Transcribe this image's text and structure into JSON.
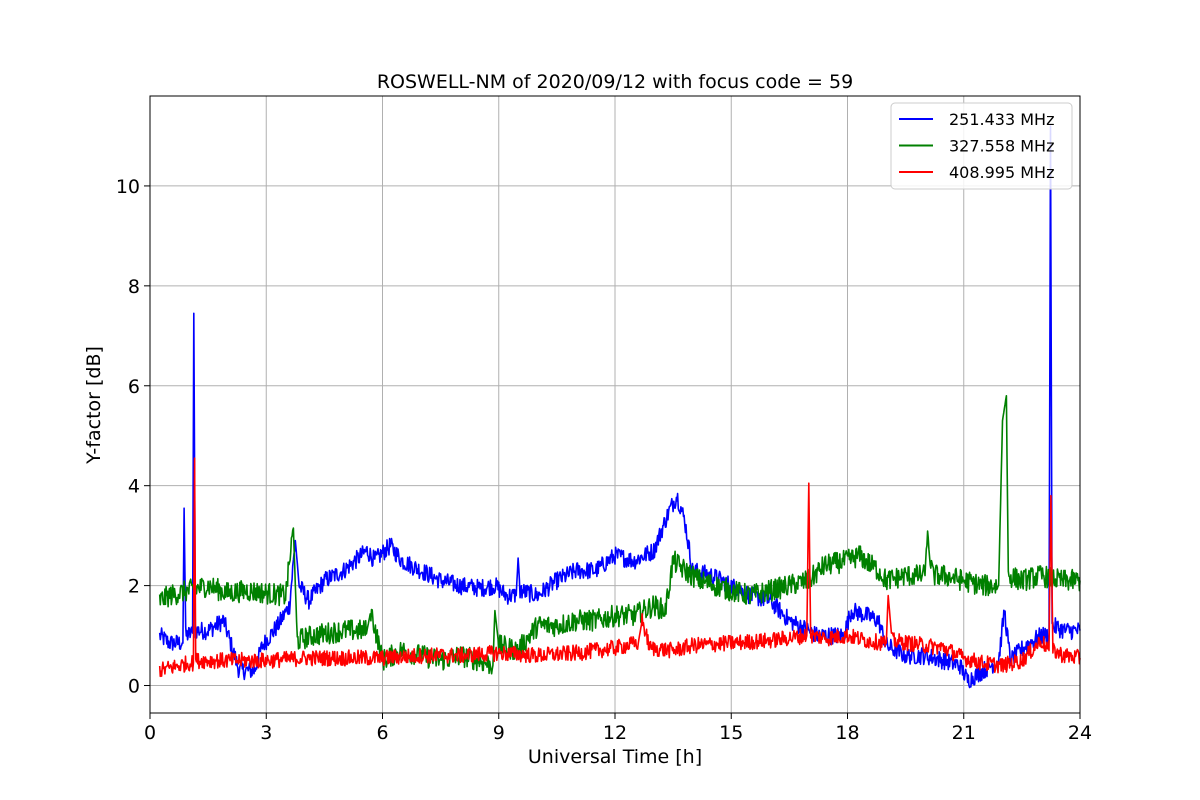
{
  "chart_data": {
    "type": "line",
    "title": "ROSWELL-NM of 2020/09/12 with focus code = 59",
    "xlabel": "Universal Time [h]",
    "ylabel": "Y-factor [dB]",
    "xlim": [
      0,
      24
    ],
    "ylim": [
      -0.55,
      11.8
    ],
    "xticks": [
      0,
      3,
      6,
      9,
      12,
      15,
      18,
      21,
      24
    ],
    "yticks": [
      0,
      2,
      4,
      6,
      8,
      10
    ],
    "grid": true,
    "legend_position": "top-right",
    "series": [
      {
        "name": "251.433 MHz",
        "color": "#0000ff",
        "noise": 0.18,
        "points": [
          [
            0.25,
            1.0
          ],
          [
            0.5,
            0.85
          ],
          [
            0.85,
            0.85
          ],
          [
            0.88,
            3.55
          ],
          [
            0.92,
            1.0
          ],
          [
            1.1,
            1.05
          ],
          [
            1.13,
            7.45
          ],
          [
            1.17,
            1.1
          ],
          [
            1.5,
            1.1
          ],
          [
            1.9,
            1.3
          ],
          [
            2.1,
            0.8
          ],
          [
            2.3,
            0.3
          ],
          [
            2.7,
            0.3
          ],
          [
            2.9,
            0.8
          ],
          [
            3.3,
            1.2
          ],
          [
            3.6,
            1.6
          ],
          [
            3.75,
            2.9
          ],
          [
            3.85,
            2.0
          ],
          [
            4.1,
            1.7
          ],
          [
            4.5,
            2.1
          ],
          [
            5.0,
            2.3
          ],
          [
            5.6,
            2.7
          ],
          [
            5.8,
            2.5
          ],
          [
            6.2,
            2.8
          ],
          [
            6.5,
            2.5
          ],
          [
            7.0,
            2.3
          ],
          [
            7.5,
            2.1
          ],
          [
            8.0,
            2.0
          ],
          [
            8.5,
            1.95
          ],
          [
            8.9,
            2.0
          ],
          [
            9.2,
            1.8
          ],
          [
            9.45,
            1.8
          ],
          [
            9.5,
            2.55
          ],
          [
            9.55,
            1.9
          ],
          [
            10.0,
            1.8
          ],
          [
            10.5,
            2.1
          ],
          [
            11.0,
            2.3
          ],
          [
            11.5,
            2.3
          ],
          [
            12.0,
            2.6
          ],
          [
            12.5,
            2.5
          ],
          [
            13.0,
            2.7
          ],
          [
            13.4,
            3.5
          ],
          [
            13.6,
            3.8
          ],
          [
            13.8,
            3.3
          ],
          [
            14.0,
            2.3
          ],
          [
            14.5,
            2.2
          ],
          [
            15.0,
            2.0
          ],
          [
            15.5,
            1.8
          ],
          [
            16.0,
            1.7
          ],
          [
            16.5,
            1.3
          ],
          [
            17.0,
            1.1
          ],
          [
            17.2,
            1.0
          ],
          [
            17.5,
            1.0
          ],
          [
            17.9,
            1.0
          ],
          [
            18.1,
            1.5
          ],
          [
            18.5,
            1.4
          ],
          [
            18.8,
            1.3
          ],
          [
            19.0,
            0.8
          ],
          [
            19.5,
            0.6
          ],
          [
            20.0,
            0.6
          ],
          [
            20.5,
            0.5
          ],
          [
            20.9,
            0.4
          ],
          [
            21.1,
            0.1
          ],
          [
            21.5,
            0.3
          ],
          [
            21.9,
            0.5
          ],
          [
            22.05,
            1.5
          ],
          [
            22.2,
            0.5
          ],
          [
            22.6,
            0.8
          ],
          [
            23.0,
            1.0
          ],
          [
            23.2,
            1.0
          ],
          [
            23.24,
            11.2
          ],
          [
            23.28,
            1.2
          ],
          [
            23.6,
            1.1
          ],
          [
            24.0,
            1.1
          ]
        ]
      },
      {
        "name": "327.558 MHz",
        "color": "#008000",
        "noise": 0.22,
        "points": [
          [
            0.25,
            1.7
          ],
          [
            0.5,
            1.8
          ],
          [
            1.0,
            1.9
          ],
          [
            1.5,
            2.0
          ],
          [
            2.0,
            1.85
          ],
          [
            2.5,
            1.9
          ],
          [
            3.0,
            1.85
          ],
          [
            3.5,
            1.8
          ],
          [
            3.7,
            3.15
          ],
          [
            3.8,
            0.9
          ],
          [
            4.2,
            1.0
          ],
          [
            5.0,
            1.1
          ],
          [
            5.6,
            1.1
          ],
          [
            5.7,
            1.5
          ],
          [
            6.0,
            0.5
          ],
          [
            6.5,
            0.7
          ],
          [
            7.0,
            0.6
          ],
          [
            7.5,
            0.5
          ],
          [
            8.0,
            0.6
          ],
          [
            8.5,
            0.5
          ],
          [
            8.85,
            0.4
          ],
          [
            8.9,
            1.5
          ],
          [
            9.0,
            0.8
          ],
          [
            9.5,
            0.7
          ],
          [
            10.0,
            1.2
          ],
          [
            10.5,
            1.2
          ],
          [
            11.0,
            1.3
          ],
          [
            11.5,
            1.3
          ],
          [
            12.0,
            1.4
          ],
          [
            12.5,
            1.4
          ],
          [
            13.0,
            1.6
          ],
          [
            13.3,
            1.5
          ],
          [
            13.5,
            2.5
          ],
          [
            13.8,
            2.3
          ],
          [
            14.2,
            2.1
          ],
          [
            14.6,
            2.0
          ],
          [
            15.0,
            1.9
          ],
          [
            15.5,
            1.8
          ],
          [
            16.0,
            1.9
          ],
          [
            16.5,
            2.0
          ],
          [
            17.0,
            2.1
          ],
          [
            17.4,
            2.4
          ],
          [
            18.0,
            2.5
          ],
          [
            18.3,
            2.6
          ],
          [
            18.8,
            2.3
          ],
          [
            19.0,
            2.1
          ],
          [
            19.5,
            2.2
          ],
          [
            20.0,
            2.2
          ],
          [
            20.05,
            3.0
          ],
          [
            20.2,
            2.2
          ],
          [
            20.5,
            2.2
          ],
          [
            21.0,
            2.1
          ],
          [
            21.5,
            2.0
          ],
          [
            21.9,
            2.0
          ],
          [
            22.0,
            5.3
          ],
          [
            22.1,
            5.8
          ],
          [
            22.15,
            2.2
          ],
          [
            22.5,
            2.1
          ],
          [
            23.0,
            2.2
          ],
          [
            23.5,
            2.1
          ],
          [
            24.0,
            2.1
          ]
        ]
      },
      {
        "name": "408.995 MHz",
        "color": "#ff0000",
        "noise": 0.16,
        "points": [
          [
            0.25,
            0.3
          ],
          [
            1.0,
            0.45
          ],
          [
            1.12,
            0.45
          ],
          [
            1.15,
            4.55
          ],
          [
            1.18,
            0.5
          ],
          [
            2.0,
            0.5
          ],
          [
            3.0,
            0.5
          ],
          [
            4.0,
            0.55
          ],
          [
            5.0,
            0.55
          ],
          [
            6.0,
            0.55
          ],
          [
            7.0,
            0.6
          ],
          [
            8.0,
            0.6
          ],
          [
            9.0,
            0.65
          ],
          [
            10.0,
            0.6
          ],
          [
            11.0,
            0.65
          ],
          [
            12.0,
            0.75
          ],
          [
            12.6,
            0.85
          ],
          [
            12.7,
            1.3
          ],
          [
            12.9,
            0.75
          ],
          [
            13.5,
            0.7
          ],
          [
            14.0,
            0.8
          ],
          [
            15.0,
            0.85
          ],
          [
            16.0,
            0.9
          ],
          [
            16.95,
            1.0
          ],
          [
            17.0,
            4.05
          ],
          [
            17.05,
            1.0
          ],
          [
            17.5,
            0.95
          ],
          [
            18.0,
            1.0
          ],
          [
            18.5,
            0.9
          ],
          [
            19.0,
            0.85
          ],
          [
            19.05,
            1.8
          ],
          [
            19.15,
            0.9
          ],
          [
            20.0,
            0.8
          ],
          [
            20.5,
            0.75
          ],
          [
            21.0,
            0.55
          ],
          [
            21.5,
            0.45
          ],
          [
            22.0,
            0.4
          ],
          [
            22.5,
            0.5
          ],
          [
            23.0,
            0.9
          ],
          [
            23.2,
            0.7
          ],
          [
            23.25,
            3.8
          ],
          [
            23.3,
            0.7
          ],
          [
            23.6,
            0.6
          ],
          [
            24.0,
            0.55
          ]
        ]
      }
    ]
  }
}
